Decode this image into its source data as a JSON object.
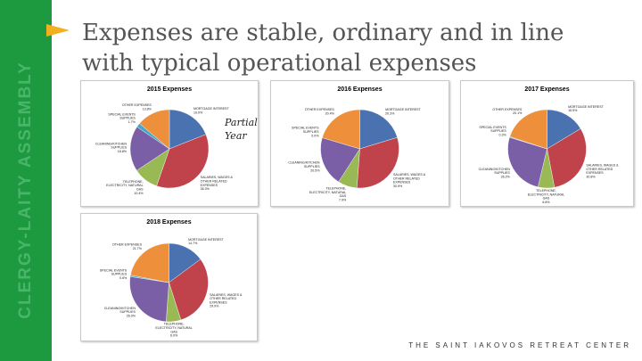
{
  "sidebar": {
    "text": "CLERGY-LAITY ASSEMBLY",
    "color": "#1d9a3f"
  },
  "slide": {
    "title": "Expenses are stable, ordinary and in line with typical operational expenses",
    "accent_color": "#f2b01e",
    "partial_note": "Partial Year",
    "footer": "THE SAINT IAKOVOS RETREAT CENTER"
  },
  "colors": {
    "MORTGAGE INTEREST": "#4a72b0",
    "SALARIES, WAGES & OTHER RELATED EXPENSES": "#c0424a",
    "TELEPHONE, ELECTRICITY, NATURAL GAS": "#98b954",
    "CLEANING/KITCHEN SUPPLIES": "#7a5fa6",
    "SPECIAL EVENTS SUPPLIES": "#43a7c7",
    "OTHER EXPENSES": "#ee8f3b"
  },
  "chart_data": [
    {
      "type": "pie",
      "title": "2015 Expenses",
      "slices": [
        {
          "label": "MORTGAGE INTEREST",
          "percent": 19.0,
          "percent_label": "19.0%",
          "label_lines": [
            "MORTGAGE INTEREST",
            "19.0%"
          ]
        },
        {
          "label": "SALARIES, WAGES & OTHER RELATED EXPENSES",
          "percent": 36.3,
          "percent_label": "36.3%",
          "label_lines": [
            "SALARIES, WAGES &",
            "OTHER RELATED",
            "EXPENSES",
            "36.3%"
          ]
        },
        {
          "label": "TELEPHONE, ELECTRICITY, NATURAL GAS",
          "percent": 10.4,
          "percent_label": "10.4%",
          "label_lines": [
            "TELEPHONE,",
            "ELECTRICITY, NATURAL",
            "GAS",
            "10.4%"
          ]
        },
        {
          "label": "CLEANING/KITCHEN SUPPLIES",
          "percent": 18.8,
          "percent_label": "18.8%",
          "label_lines": [
            "CLEANING/KITCHEN",
            "SUPPLIES",
            "18.8%"
          ]
        },
        {
          "label": "SPECIAL EVENTS SUPPLIES",
          "percent": 1.7,
          "percent_label": "1.7%",
          "label_lines": [
            "SPECIAL EVENTS",
            "SUPPLIES",
            "1.7%"
          ]
        },
        {
          "label": "OTHER EXPENSES",
          "percent": 13.8,
          "percent_label": "13.8%",
          "label_lines": [
            "OTHER EXPENSES",
            "13.8%"
          ]
        }
      ]
    },
    {
      "type": "pie",
      "title": "2016 Expenses",
      "slices": [
        {
          "label": "MORTGAGE INTEREST",
          "percent": 20.3,
          "percent_label": "20.3%",
          "label_lines": [
            "MORTGAGE INTEREST",
            "20.3%"
          ]
        },
        {
          "label": "SALARIES, WAGES & OTHER RELATED EXPENSES",
          "percent": 30.9,
          "percent_label": "30.9%",
          "label_lines": [
            "SALARIES, WAGES &",
            "OTHER RELATED",
            "EXPENSES",
            "30.9%"
          ]
        },
        {
          "label": "TELEPHONE, ELECTRICITY, NATURAL GAS",
          "percent": 7.9,
          "percent_label": "7.9%",
          "label_lines": [
            "TELEPHONE,",
            "ELECTRICITY, NATURAL",
            "GAS",
            "7.9%"
          ]
        },
        {
          "label": "CLEANING/KITCHEN SUPPLIES",
          "percent": 20.5,
          "percent_label": "20.5%",
          "label_lines": [
            "CLEANING/KITCHEN",
            "SUPPLIES",
            "20.5%"
          ]
        },
        {
          "label": "SPECIAL EVENTS SUPPLIES",
          "percent": 0.0,
          "percent_label": "0.0%",
          "label_lines": [
            "SPECIAL EVENTS",
            "SUPPLIES",
            "0.0%"
          ]
        },
        {
          "label": "OTHER EXPENSES",
          "percent": 20.4,
          "percent_label": "20.4%",
          "label_lines": [
            "OTHER EXPENSES",
            "20.4%"
          ]
        }
      ]
    },
    {
      "type": "pie",
      "title": "2017 Expenses",
      "slices": [
        {
          "label": "MORTGAGE INTEREST",
          "percent": 16.5,
          "percent_label": "16.5%",
          "label_lines": [
            "MORTGAGE INTEREST",
            "16.5%"
          ]
        },
        {
          "label": "SALARIES, WAGES & OTHER RELATED EXPENSES",
          "percent": 30.8,
          "percent_label": "30.8%",
          "label_lines": [
            "SALARIES, WAGES &",
            "OTHER RELATED",
            "EXPENSES",
            "30.8%"
          ]
        },
        {
          "label": "TELEPHONE, ELECTRICITY, NATURAL GAS",
          "percent": 6.8,
          "percent_label": "6.8%",
          "label_lines": [
            "TELEPHONE,",
            "ELECTRICITY, NATURAL",
            "GAS",
            "6.8%"
          ]
        },
        {
          "label": "CLEANING/KITCHEN SUPPLIES",
          "percent": 26.2,
          "percent_label": "26.2%",
          "label_lines": [
            "CLEANING/KITCHEN",
            "SUPPLIES",
            "26.2%"
          ]
        },
        {
          "label": "SPECIAL EVENTS SUPPLIES",
          "percent": 0.3,
          "percent_label": "0.3%",
          "label_lines": [
            "SPECIAL EVENTS",
            "SUPPLIES",
            "0.3%"
          ]
        },
        {
          "label": "OTHER EXPENSES",
          "percent": 20.1,
          "percent_label": "20.1%",
          "label_lines": [
            "OTHER EXPENSES",
            "20.1%"
          ]
        }
      ]
    },
    {
      "type": "pie",
      "title": "2018 Expenses",
      "slices": [
        {
          "label": "MORTGAGE INTEREST",
          "percent": 14.7,
          "percent_label": "14.7%",
          "label_lines": [
            "MORTGAGE INTEREST",
            "14.7%"
          ]
        },
        {
          "label": "SALARIES, WAGES & OTHER RELATED EXPENSES",
          "percent": 29.9,
          "percent_label": "29.9%",
          "label_lines": [
            "SALARIES, WAGES &",
            "OTHER RELATED",
            "EXPENSES",
            "29.9%"
          ]
        },
        {
          "label": "TELEPHONE, ELECTRICITY, NATURAL GAS",
          "percent": 6.0,
          "percent_label": "6.0%",
          "label_lines": [
            "TELEPHONE,",
            "ELECTRICITY, NATURAL",
            "GAS",
            "6.0%"
          ]
        },
        {
          "label": "CLEANING/KITCHEN SUPPLIES",
          "percent": 26.0,
          "percent_label": "26.0%",
          "label_lines": [
            "CLEANING/KITCHEN",
            "SUPPLIES",
            "26.0%"
          ]
        },
        {
          "label": "SPECIAL EVENTS SUPPLIES",
          "percent": 0.6,
          "percent_label": "0.6%",
          "label_lines": [
            "SPECIAL EVENTS",
            "SUPPLIES",
            "0.6%"
          ]
        },
        {
          "label": "OTHER EXPENSES",
          "percent": 21.7,
          "percent_label": "21.7%",
          "label_lines": [
            "OTHER EXPENSES",
            "21.7%"
          ]
        }
      ]
    }
  ]
}
